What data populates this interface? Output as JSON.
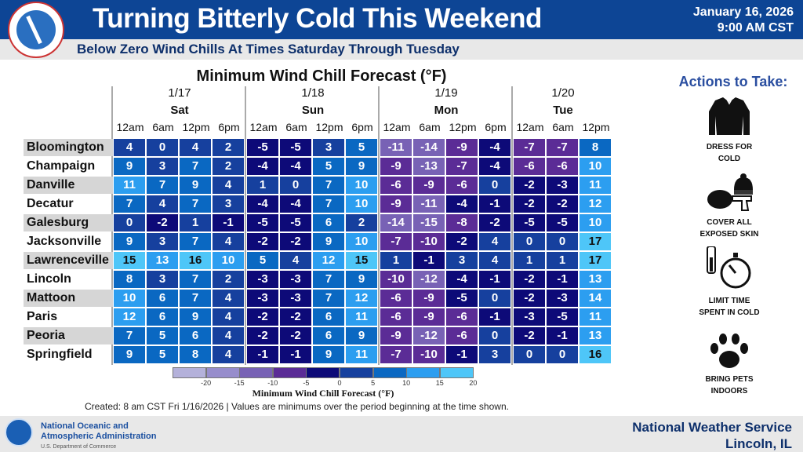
{
  "header": {
    "title": "Turning Bitterly Cold This Weekend",
    "date": "January 16, 2026",
    "time": "9:00 AM CST",
    "subtitle": "Below Zero Wind Chills At Times Saturday Through Tuesday",
    "logo_text": "NATIONAL WEATHER SERVICE"
  },
  "table": {
    "title": "Minimum Wind Chill Forecast (°F)",
    "days": [
      {
        "date": "1/17",
        "day": "Sat",
        "times": [
          "12am",
          "6am",
          "12pm",
          "6pm"
        ]
      },
      {
        "date": "1/18",
        "day": "Sun",
        "times": [
          "12am",
          "6am",
          "12pm",
          "6pm"
        ]
      },
      {
        "date": "1/19",
        "day": "Mon",
        "times": [
          "12am",
          "6am",
          "12pm",
          "6pm"
        ]
      },
      {
        "date": "1/20",
        "day": "Tue",
        "times": [
          "12am",
          "6am",
          "12pm"
        ]
      }
    ],
    "rows": [
      {
        "city": "Bloomington",
        "values": [
          4,
          0,
          4,
          2,
          -5,
          -5,
          3,
          5,
          -11,
          -14,
          -9,
          -4,
          -7,
          -7,
          8
        ]
      },
      {
        "city": "Champaign",
        "values": [
          9,
          3,
          7,
          2,
          -4,
          -4,
          5,
          9,
          -9,
          -13,
          -7,
          -4,
          -6,
          -6,
          10
        ]
      },
      {
        "city": "Danville",
        "values": [
          11,
          7,
          9,
          4,
          1,
          0,
          7,
          10,
          -6,
          -9,
          -6,
          0,
          -2,
          -3,
          11
        ]
      },
      {
        "city": "Decatur",
        "values": [
          7,
          4,
          7,
          3,
          -4,
          -4,
          7,
          10,
          -9,
          -11,
          -4,
          -1,
          -2,
          -2,
          12
        ]
      },
      {
        "city": "Galesburg",
        "values": [
          0,
          -2,
          1,
          -1,
          -5,
          -5,
          6,
          2,
          -14,
          -15,
          -8,
          -2,
          -5,
          -5,
          10
        ]
      },
      {
        "city": "Jacksonville",
        "values": [
          9,
          3,
          7,
          4,
          -2,
          -2,
          9,
          10,
          -7,
          -10,
          -2,
          4,
          0,
          0,
          17
        ]
      },
      {
        "city": "Lawrenceville",
        "values": [
          15,
          13,
          16,
          10,
          5,
          4,
          12,
          15,
          1,
          -1,
          3,
          4,
          1,
          1,
          17
        ]
      },
      {
        "city": "Lincoln",
        "values": [
          8,
          3,
          7,
          2,
          -3,
          -3,
          7,
          9,
          -10,
          -12,
          -4,
          -1,
          -2,
          -1,
          13
        ]
      },
      {
        "city": "Mattoon",
        "values": [
          10,
          6,
          7,
          4,
          -3,
          -3,
          7,
          12,
          -6,
          -9,
          -5,
          0,
          -2,
          -3,
          14
        ]
      },
      {
        "city": "Paris",
        "values": [
          12,
          6,
          9,
          4,
          -2,
          -2,
          6,
          11,
          -6,
          -9,
          -6,
          -1,
          -3,
          -5,
          11
        ]
      },
      {
        "city": "Peoria",
        "values": [
          7,
          5,
          6,
          4,
          -2,
          -2,
          6,
          9,
          -9,
          -12,
          -6,
          0,
          -2,
          -1,
          13
        ]
      },
      {
        "city": "Springfield",
        "values": [
          9,
          5,
          8,
          4,
          -1,
          -1,
          9,
          11,
          -7,
          -10,
          -1,
          3,
          0,
          0,
          16
        ]
      }
    ]
  },
  "colorbar": {
    "label": "Minimum Wind Chill Forecast (°F)",
    "ticks": [
      "-20",
      "-15",
      "-10",
      "-5",
      "0",
      "5",
      "10",
      "15",
      "20"
    ],
    "colors": [
      "#b4b1da",
      "#978dcc",
      "#7862b5",
      "#5b2c96",
      "#0d0a78",
      "#16409e",
      "#0a68c2",
      "#2c9ef0",
      "#4ec6f8"
    ]
  },
  "note": "Created: 8 am CST Fri 1/16/2026  |  Values are minimums over the period beginning at the time shown.",
  "actions": {
    "title": "Actions to Take:",
    "items": [
      {
        "icon": "jacket-icon",
        "label1": "DRESS FOR",
        "label2": "COLD"
      },
      {
        "icon": "hat-gloves-icon",
        "label1": "COVER ALL",
        "label2": "EXPOSED SKIN"
      },
      {
        "icon": "stopwatch-icon",
        "label1": "LIMIT TIME",
        "label2": "SPENT IN COLD"
      },
      {
        "icon": "paw-icon",
        "label1": "BRING PETS",
        "label2": "INDOORS"
      }
    ]
  },
  "footer": {
    "noaa_line1": "National Oceanic and",
    "noaa_line2": "Atmospheric Administration",
    "noaa_line3": "U.S. Department of Commerce",
    "office_line1": "National Weather Service",
    "office_line2": "Lincoln, IL"
  }
}
